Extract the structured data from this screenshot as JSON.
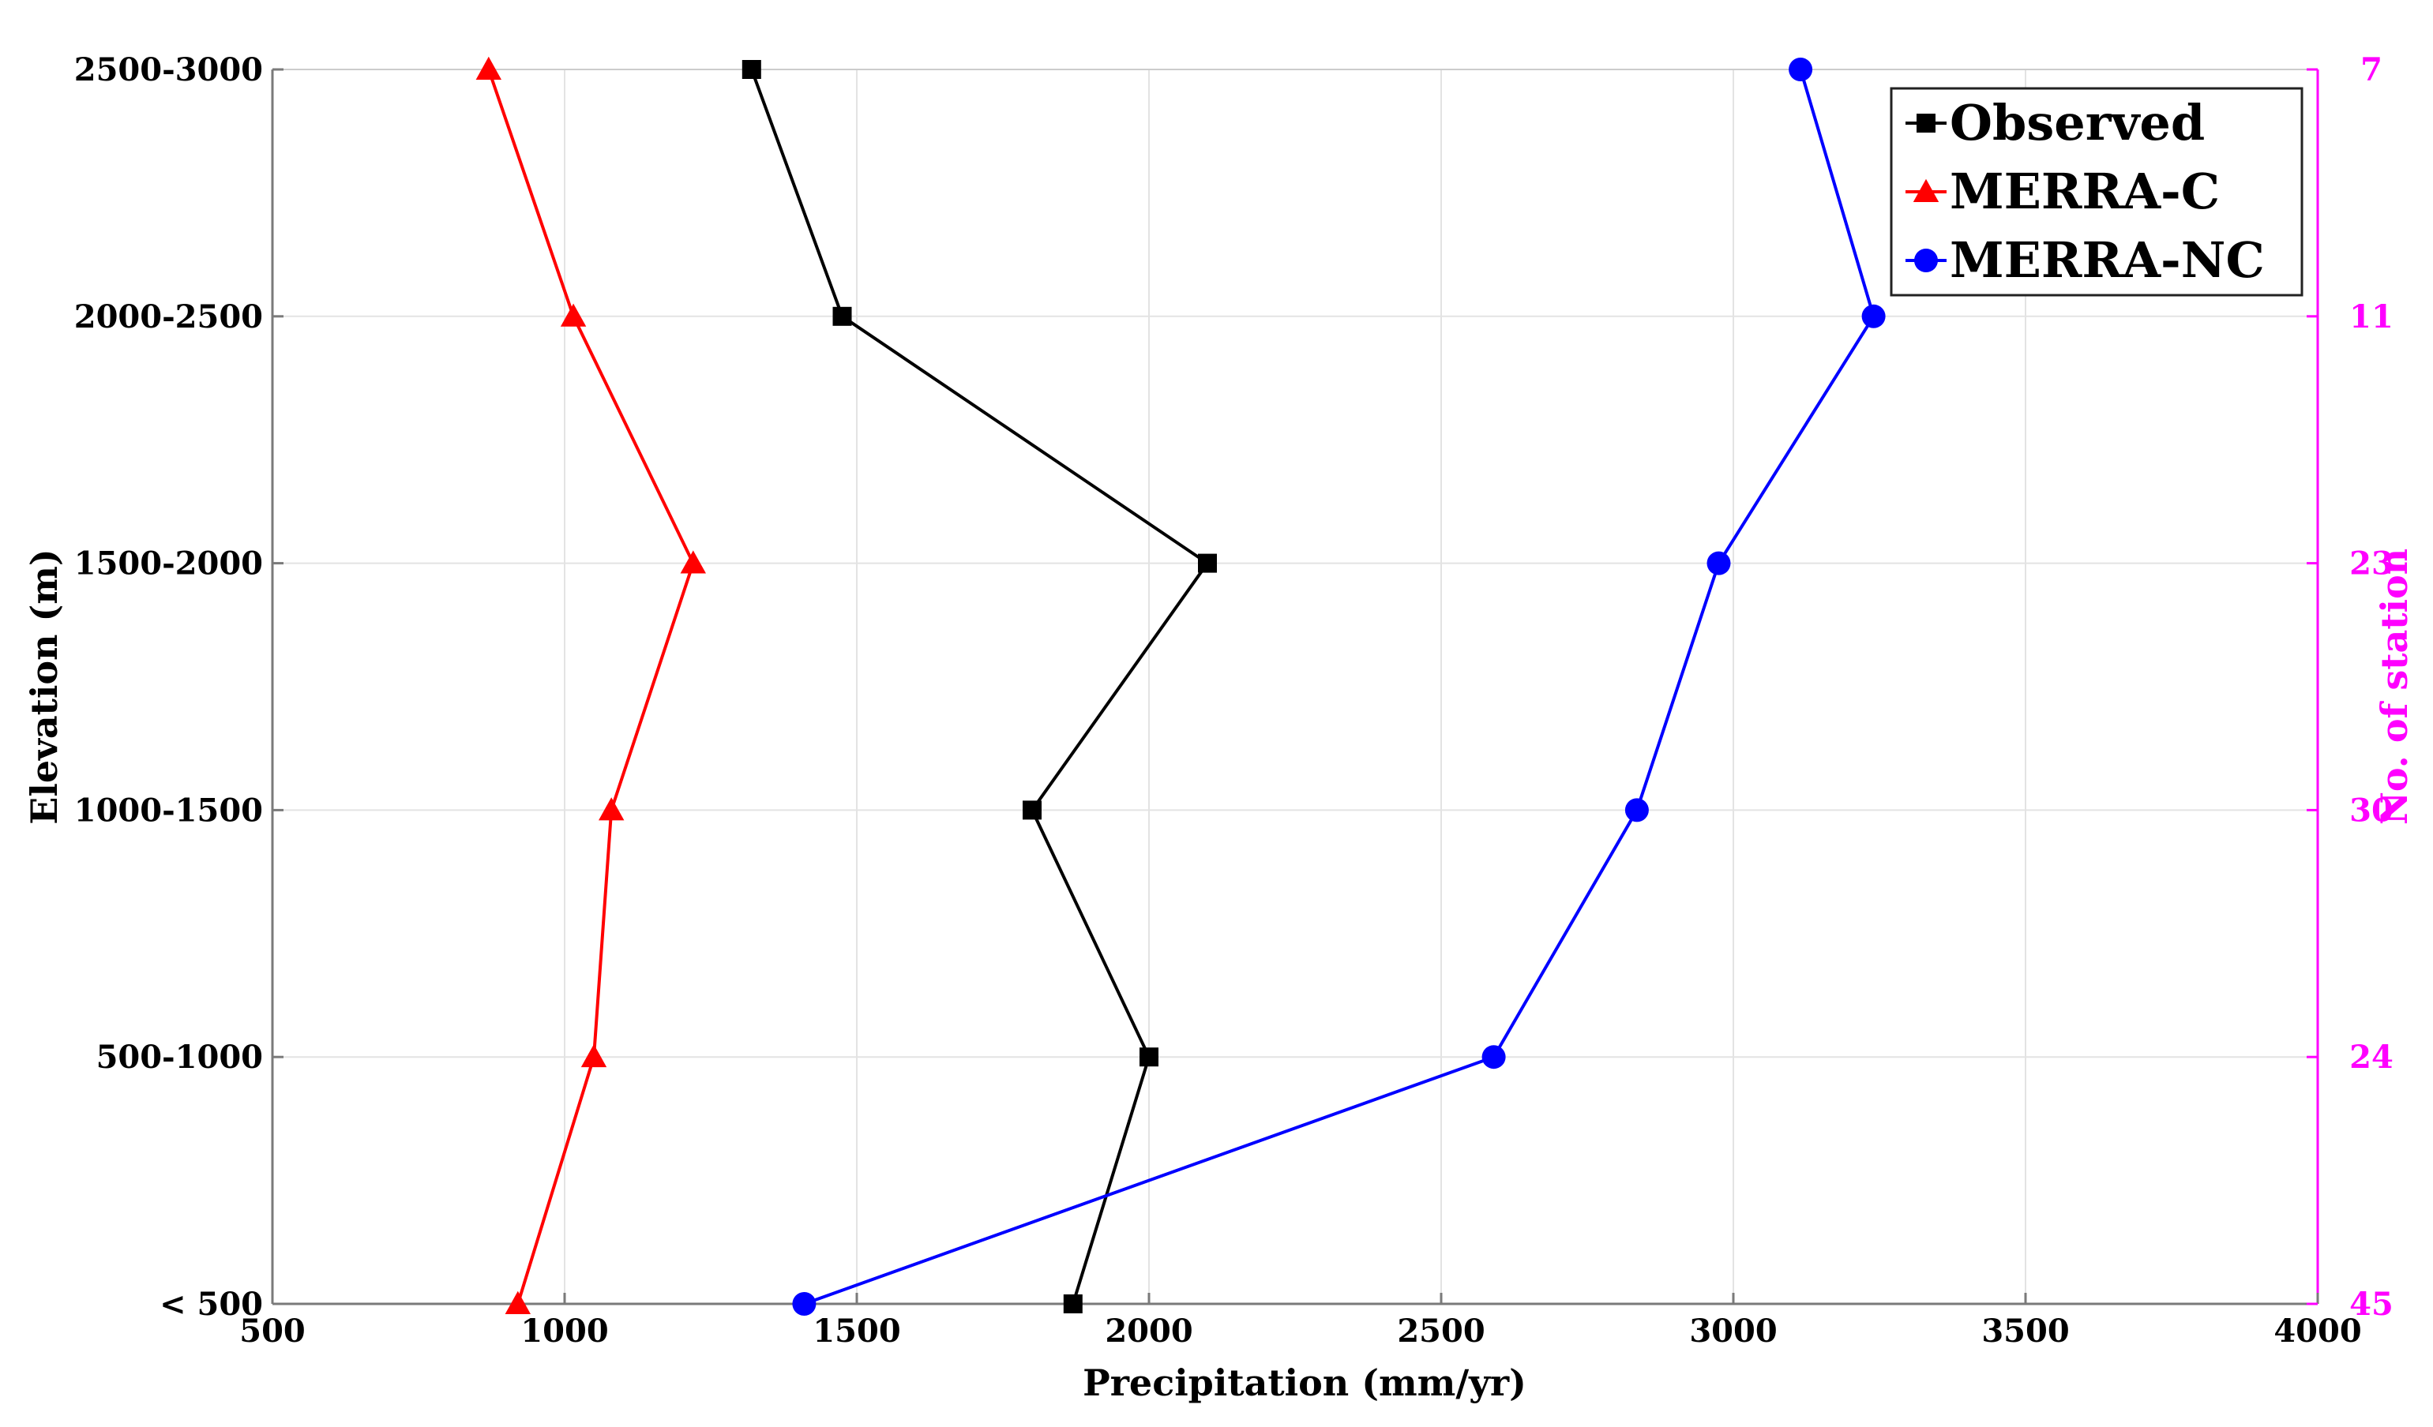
{
  "chart_data": {
    "type": "line",
    "xlabel": "Precipitation (mm/yr)",
    "ylabel": "Elevation (m)",
    "y2label": "No. of station",
    "xlim": [
      500,
      4000
    ],
    "x_ticks": [
      500,
      1000,
      1500,
      2000,
      2500,
      3000,
      3500,
      4000
    ],
    "categories": [
      "< 500",
      "500-1000",
      "1000-1500",
      "1500-2000",
      "2000-2500",
      "2500-3000"
    ],
    "station_counts": [
      "45",
      "24",
      "30",
      "23",
      "11",
      "7"
    ],
    "grid": true,
    "legend_position": "top-right",
    "series": [
      {
        "name": "Observed",
        "color": "#000000",
        "marker": "square",
        "values": [
          1870,
          2000,
          1800,
          2100,
          1475,
          1320
        ]
      },
      {
        "name": "MERRA-C",
        "color": "#ff0000",
        "marker": "triangle",
        "values": [
          920,
          1050,
          1080,
          1220,
          1015,
          870
        ]
      },
      {
        "name": "MERRA-NC",
        "color": "#0000ff",
        "marker": "circle",
        "values": [
          1410,
          2590,
          2835,
          2975,
          3240,
          3115
        ]
      }
    ],
    "right_axis_color": "#ff00ff"
  }
}
